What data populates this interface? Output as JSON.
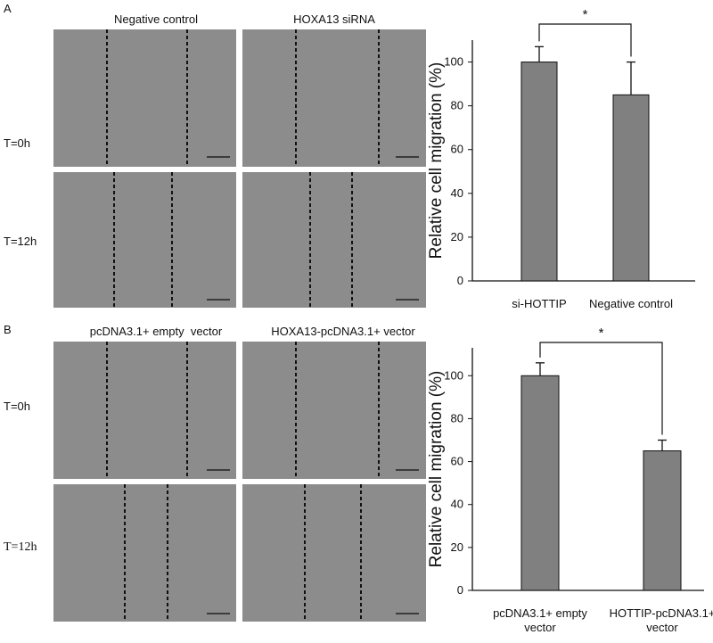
{
  "panels": [
    {
      "label": "A",
      "columns": [
        "Negative control",
        "HOXA13 siRNA"
      ],
      "rows": [
        "T=0h",
        "T=12h"
      ]
    },
    {
      "label": "B",
      "columns": [
        "pcDNA3.1+ empty  vector",
        "HOXA13-pcDNA3.1+ vector"
      ],
      "rows": [
        "T=0h",
        "T=12h"
      ]
    }
  ],
  "chart_data": [
    {
      "type": "bar",
      "ylabel": "Relative cell migration (%)",
      "categories": [
        "si-HOTTIP",
        "Negative control"
      ],
      "values": [
        100,
        85
      ],
      "errors": [
        7,
        15
      ],
      "color": "#808080",
      "ylim": [
        0,
        110
      ],
      "yticks": [
        0,
        20,
        40,
        60,
        80,
        100
      ],
      "annotation": "*"
    },
    {
      "type": "bar",
      "ylabel": "Relative cell migration (%)",
      "categories": [
        "pcDNA3.1+ empty\nvector",
        "HOTTIP-pcDNA3.1+\nvector"
      ],
      "values": [
        100,
        65
      ],
      "errors": [
        6,
        5
      ],
      "color": "#808080",
      "ylim": [
        0,
        113
      ],
      "yticks": [
        0,
        20,
        40,
        60,
        80,
        100
      ],
      "annotation": "*"
    }
  ]
}
